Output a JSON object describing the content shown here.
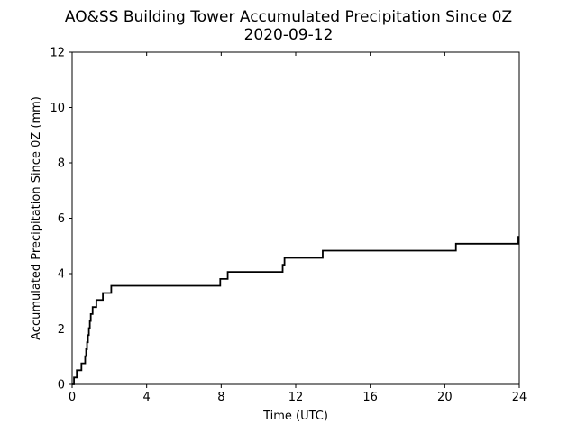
{
  "chart_data": {
    "type": "line",
    "title": "AO&SS Building Tower Accumulated Precipitation Since 0Z",
    "subtitle": "2020-09-12",
    "xlabel": "Time (UTC)",
    "ylabel": "Accumulated Precipitation Since 0Z (mm)",
    "xlim": [
      0,
      24
    ],
    "ylim": [
      0,
      12
    ],
    "xticks": [
      0,
      4,
      8,
      12,
      16,
      20,
      24
    ],
    "yticks": [
      0,
      2,
      4,
      6,
      8,
      10,
      12
    ],
    "grid": false,
    "line_color": "#000000",
    "series": [
      {
        "step": true,
        "x": [
          0.0,
          0.1,
          0.25,
          0.5,
          0.7,
          0.75,
          0.8,
          0.85,
          0.9,
          0.95,
          1.0,
          1.1,
          1.3,
          1.65,
          2.1,
          7.95,
          8.35,
          11.3,
          11.4,
          13.45,
          20.6,
          23.95,
          24.0
        ],
        "y": [
          0.0,
          0.25,
          0.51,
          0.76,
          1.02,
          1.27,
          1.52,
          1.78,
          2.03,
          2.29,
          2.54,
          2.79,
          3.05,
          3.3,
          3.56,
          3.81,
          4.06,
          4.32,
          4.57,
          4.83,
          5.08,
          5.33,
          5.33
        ]
      }
    ]
  }
}
